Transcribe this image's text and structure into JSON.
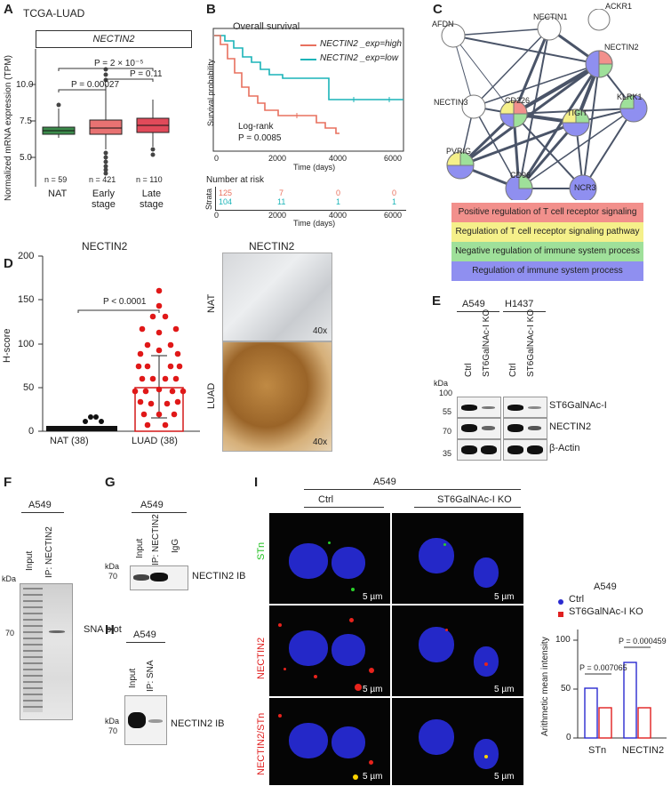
{
  "panels": {
    "A": {
      "letter": "A",
      "title": "TCGA-LUAD",
      "gene_box": "NECTIN2",
      "ylabel": "Normalized mRNA expression (TPM)",
      "yticks": [
        "10.0",
        "7.5",
        "5.0"
      ],
      "groups": [
        {
          "label": "NAT",
          "n": "n = 59",
          "color": "#3c8c4c"
        },
        {
          "label": "Early\nstage",
          "n": "n = 421",
          "color": "#e87272"
        },
        {
          "label": "Late\nstage",
          "n": "n = 110",
          "color": "#e14a5a"
        }
      ],
      "pvalues": [
        "P = 2 × 10⁻⁵",
        "P = 0.00027",
        "P = 0.11"
      ]
    },
    "B": {
      "letter": "B",
      "title": "Overall survival",
      "ylabel": "Survival probability",
      "xlabel": "Time (days)",
      "xticks": [
        "0",
        "2000",
        "4000",
        "6000"
      ],
      "yticks": [
        "1.00",
        "0.75",
        "0.50",
        "0.25",
        "0"
      ],
      "legend": [
        {
          "label": "NECTIN2 _exp=high",
          "color": "#e8705e"
        },
        {
          "label": "NECTIN2 _exp=low",
          "color": "#1ab4b8"
        }
      ],
      "test": "Log-rank",
      "pvalue": "P = 0.0085",
      "risk_title": "Number at risk",
      "risk_ylabel": "Strata",
      "risk_high": [
        "125",
        "7",
        "0",
        "0"
      ],
      "risk_low": [
        "104",
        "11",
        "1",
        "1"
      ],
      "risk_xlabel": "Time (days)"
    },
    "C": {
      "letter": "C",
      "nodes": [
        "AFDN",
        "NECTIN1",
        "ACKR1",
        "NECTIN2",
        "NECTIN3",
        "CD226",
        "KLRK1",
        "TIGIT",
        "PVRIG",
        "CD96",
        "NCR3"
      ],
      "legend": [
        {
          "label": "Positive regulation of T cell receptor signaling",
          "color": "#f2908c"
        },
        {
          "label": "Regulation of T cell receptor signaling pathway",
          "color": "#f5f08a"
        },
        {
          "label": "Negative regulation of immune system process",
          "color": "#9fe09a"
        },
        {
          "label": "Regulation of immune system process",
          "color": "#8f8ff0"
        }
      ]
    },
    "D": {
      "letter": "D",
      "title": "NECTIN2",
      "ylabel": "H-score",
      "yticks": [
        "200",
        "150",
        "100",
        "50",
        "0"
      ],
      "groups": [
        "NAT (38)",
        "LUAD (38)"
      ],
      "pvalue": "P < 0.0001",
      "ihc_title": "NECTIN2",
      "ihc_rows": [
        "NAT",
        "LUAD"
      ],
      "mag": "40x"
    },
    "E": {
      "letter": "E",
      "cells": [
        "A549",
        "H1437"
      ],
      "lanes": [
        "Ctrl",
        "ST6GalNAc-I KO",
        "Ctrl",
        "ST6GalNAc-I KO"
      ],
      "kda_label": "kDa",
      "markers": [
        "100",
        "55",
        "70",
        "35"
      ],
      "bands": [
        "ST6GalNAc-I",
        "NECTIN2",
        "β-Actin"
      ]
    },
    "F": {
      "letter": "F",
      "cell": "A549",
      "lanes": [
        "Input",
        "IP: NECTIN2"
      ],
      "kda_label": "kDa",
      "marker": "70",
      "blot": "SNA blot"
    },
    "G": {
      "letter": "G",
      "cell": "A549",
      "lanes": [
        "Input",
        "IP: NECTIN2",
        "IgG"
      ],
      "kda_label": "kDa",
      "marker": "70",
      "blot": "NECTIN2 IB"
    },
    "H": {
      "letter": "H",
      "cell": "A549",
      "lanes": [
        "Input",
        "IP: SNA"
      ],
      "kda_label": "kDa",
      "marker": "70",
      "blot": "NECTIN2 IB"
    },
    "I": {
      "letter": "I",
      "cell": "A549",
      "conditions": [
        "Ctrl",
        "ST6GalNAc-I KO"
      ],
      "rows": [
        "STn",
        "NECTIN2",
        "NECTIN2/STn"
      ],
      "scale": "5 µm",
      "chart_title": "A549",
      "legend": [
        {
          "label": "Ctrl",
          "color": "#2a2ad0"
        },
        {
          "label": "ST6GalNAc-I KO",
          "color": "#e02020"
        }
      ],
      "ylabel": "Arithmetic mean intensity",
      "yticks": [
        "100",
        "50",
        "0"
      ],
      "categories": [
        "STn",
        "NECTIN2"
      ],
      "pvalues": [
        "P = 0.007065",
        "P = 0.000459"
      ]
    }
  },
  "chart_data": [
    {
      "type": "box",
      "title": "TCGA-LUAD",
      "ylabel": "Normalized mRNA expression (TPM)",
      "categories": [
        "NAT",
        "Early stage",
        "Late stage"
      ],
      "median": [
        6.6,
        6.8,
        7.0
      ],
      "q1": [
        6.4,
        6.4,
        6.6
      ],
      "q3": [
        6.9,
        7.3,
        7.6
      ],
      "ylim": [
        3.5,
        12.5
      ]
    },
    {
      "type": "line",
      "title": "Overall survival",
      "xlabel": "Time (days)",
      "ylabel": "Survival probability",
      "series": [
        {
          "name": "NECTIN2 _exp=high",
          "x": [
            0,
            300,
            600,
            900,
            1200,
            1500,
            2000,
            2500,
            3000,
            3500,
            3800
          ],
          "y": [
            1.0,
            0.85,
            0.7,
            0.55,
            0.45,
            0.38,
            0.32,
            0.32,
            0.27,
            0.2,
            0.13
          ]
        },
        {
          "name": "NECTIN2 _exp=low",
          "x": [
            0,
            300,
            600,
            900,
            1200,
            1500,
            2000,
            2500,
            3100,
            3300,
            6300
          ],
          "y": [
            1.0,
            0.92,
            0.85,
            0.75,
            0.68,
            0.6,
            0.57,
            0.57,
            0.57,
            0.38,
            0.38
          ]
        }
      ],
      "xlim": [
        0,
        6300
      ],
      "ylim": [
        0,
        1
      ]
    },
    {
      "type": "bar",
      "title": "NECTIN2",
      "ylabel": "H-score",
      "categories": [
        "NAT (38)",
        "LUAD (38)"
      ],
      "values": [
        2,
        50
      ],
      "ylim": [
        0,
        200
      ]
    },
    {
      "type": "bar",
      "title": "A549",
      "ylabel": "Arithmetic mean intensity",
      "categories": [
        "STn",
        "NECTIN2"
      ],
      "series": [
        {
          "name": "Ctrl",
          "values": [
            56,
            85
          ]
        },
        {
          "name": "ST6GalNAc-I KO",
          "values": [
            34,
            34
          ]
        }
      ],
      "ylim": [
        0,
        110
      ]
    }
  ]
}
